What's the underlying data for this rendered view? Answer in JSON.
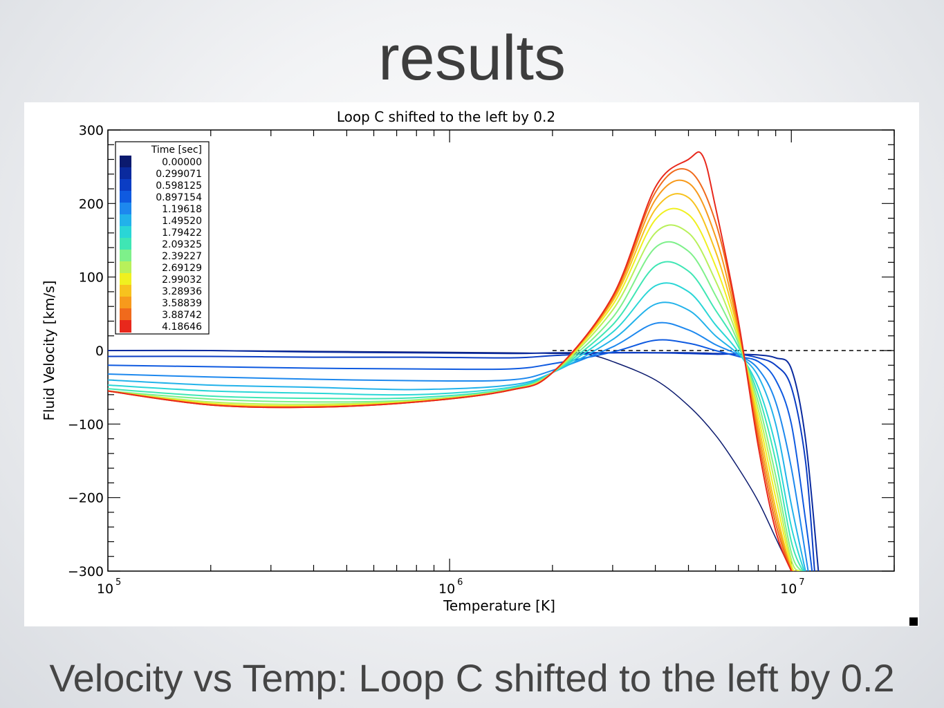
{
  "slide": {
    "title": "results",
    "caption": "Velocity vs Temp: Loop C shifted to the left by 0.2"
  },
  "chart_data": {
    "type": "line",
    "title": "Loop C shifted to the left by 0.2",
    "xlabel": "Temperature [K]",
    "ylabel": "Fluid Velocity [km/s]",
    "x_scale": "log",
    "xlim": [
      100000,
      20000000
    ],
    "ylim": [
      -300,
      300
    ],
    "x_ticks": [
      {
        "value": 100000,
        "base": "10",
        "exp": "5"
      },
      {
        "value": 1000000,
        "base": "10",
        "exp": "6"
      },
      {
        "value": 10000000,
        "base": "10",
        "exp": "7"
      }
    ],
    "y_ticks": [
      {
        "value": 300,
        "label": "300"
      },
      {
        "value": 200,
        "label": "200"
      },
      {
        "value": 100,
        "label": "100"
      },
      {
        "value": 0,
        "label": "0"
      },
      {
        "value": -100,
        "label": "−100"
      },
      {
        "value": -200,
        "label": "−200"
      },
      {
        "value": -300,
        "label": "−300"
      }
    ],
    "legend": {
      "title": "Time [sec]",
      "position": "top-left",
      "entries": [
        "0.00000",
        "0.299071",
        "0.598125",
        "0.897154",
        "1.19618",
        "1.49520",
        "1.79422",
        "2.09325",
        "2.39227",
        "2.69129",
        "2.99032",
        "3.28936",
        "3.58839",
        "3.88742",
        "4.18646"
      ]
    },
    "colors": [
      "#0b1a6e",
      "#0a2a9e",
      "#0b3dc4",
      "#0f5ae0",
      "#1d88ee",
      "#22b2ea",
      "#2ad6d6",
      "#3fe6b4",
      "#7ef08a",
      "#b8f05a",
      "#f0f020",
      "#f7c21e",
      "#f79a1c",
      "#f06a1c",
      "#e8281c"
    ],
    "reference_line": {
      "y": 0,
      "style": "dashed"
    },
    "series": [
      {
        "x": [
          100000,
          200000,
          400000,
          800000,
          1500000,
          2000000,
          2500000,
          3000000,
          4000000,
          5000000,
          6000000,
          7000000,
          8000000,
          9000000,
          10000000
        ],
        "y": [
          0,
          0,
          -1,
          -2,
          -3,
          -4,
          -5,
          -15,
          -40,
          -75,
          -115,
          -160,
          -205,
          -255,
          -300
        ]
      },
      {
        "x": [
          100000,
          200000,
          400000,
          800000,
          1500000,
          2100000,
          3000000,
          4000000,
          5000000,
          6000000,
          7000000,
          8000000,
          9000000,
          10000000,
          11000000,
          12000000
        ],
        "y": [
          0,
          0,
          -2,
          -3,
          -4,
          -3,
          -3,
          -3,
          -3,
          -4,
          -5,
          -6,
          -10,
          -25,
          -120,
          -300
        ]
      },
      {
        "x": [
          100000,
          200000,
          400000,
          800000,
          1500000,
          2000000,
          3000000,
          4000000,
          5000000,
          6000000,
          7000000,
          8000000,
          9000000,
          10000000,
          11000000,
          11700000
        ],
        "y": [
          -8,
          -8,
          -9,
          -9,
          -10,
          -7,
          -3,
          -3,
          -4,
          -5,
          -5,
          -10,
          -20,
          -50,
          -150,
          -300
        ]
      },
      {
        "x": [
          100000,
          200000,
          400000,
          800000,
          1500000,
          2000000,
          3000000,
          4000000,
          5000000,
          6000000,
          7000000,
          8000000,
          9000000,
          10000000,
          11000000,
          11500000
        ],
        "y": [
          -20,
          -22,
          -24,
          -25,
          -25,
          -18,
          -2,
          14,
          10,
          0,
          -8,
          -15,
          -40,
          -100,
          -230,
          -300
        ]
      },
      {
        "x": [
          100000,
          200000,
          400000,
          800000,
          1500000,
          2000000,
          3000000,
          4000000,
          5000000,
          6000000,
          7000000,
          8000000,
          9000000,
          10000000,
          11200000
        ],
        "y": [
          -32,
          -36,
          -39,
          -41,
          -40,
          -27,
          5,
          37,
          28,
          8,
          -6,
          -25,
          -70,
          -160,
          -300
        ]
      },
      {
        "x": [
          100000,
          200000,
          400000,
          800000,
          1500000,
          2000000,
          3000000,
          4000000,
          5000000,
          6000000,
          7000000,
          8000000,
          9000000,
          10000000,
          11000000
        ],
        "y": [
          -40,
          -47,
          -50,
          -53,
          -47,
          -30,
          15,
          63,
          55,
          20,
          -5,
          -35,
          -100,
          -210,
          -300
        ]
      },
      {
        "x": [
          100000,
          200000,
          400000,
          800000,
          1500000,
          2000000,
          3000000,
          4000000,
          5000000,
          6000000,
          7000000,
          8000000,
          9000000,
          10000000,
          10900000
        ],
        "y": [
          -47,
          -55,
          -58,
          -60,
          -50,
          -30,
          25,
          88,
          80,
          35,
          -2,
          -50,
          -130,
          -240,
          -300
        ]
      },
      {
        "x": [
          100000,
          200000,
          400000,
          800000,
          1500000,
          2000000,
          3000000,
          4000000,
          5000000,
          6000000,
          7000000,
          8000000,
          9000000,
          10000000,
          10800000
        ],
        "y": [
          -52,
          -62,
          -65,
          -64,
          -52,
          -30,
          35,
          115,
          108,
          55,
          5,
          -60,
          -150,
          -260,
          -300
        ]
      },
      {
        "x": [
          100000,
          200000,
          400000,
          800000,
          1500000,
          2000000,
          3000000,
          4000000,
          5000000,
          6000000,
          7000000,
          8000000,
          9000000,
          10000000,
          10700000
        ],
        "y": [
          -55,
          -66,
          -70,
          -67,
          -53,
          -30,
          45,
          140,
          135,
          75,
          10,
          -70,
          -170,
          -275,
          -300
        ]
      },
      {
        "x": [
          100000,
          200000,
          400000,
          800000,
          1500000,
          2000000,
          3000000,
          4000000,
          5000000,
          6000000,
          7000000,
          8000000,
          9000000,
          10000000,
          10600000
        ],
        "y": [
          -55,
          -70,
          -73,
          -68,
          -53,
          -30,
          55,
          160,
          160,
          95,
          15,
          -80,
          -185,
          -285,
          -300
        ]
      },
      {
        "x": [
          100000,
          200000,
          400000,
          800000,
          1500000,
          2000000,
          3000000,
          4000000,
          5000000,
          6000000,
          7000000,
          8000000,
          9000000,
          10000000,
          10500000
        ],
        "y": [
          -55,
          -72,
          -75,
          -69,
          -54,
          -30,
          62,
          178,
          185,
          115,
          20,
          -90,
          -200,
          -292,
          -300
        ]
      },
      {
        "x": [
          100000,
          200000,
          400000,
          800000,
          1500000,
          2000000,
          3000000,
          4000000,
          5000000,
          6000000,
          7000000,
          8000000,
          9000000,
          10000000,
          10400000
        ],
        "y": [
          -55,
          -73,
          -76,
          -70,
          -54,
          -30,
          67,
          192,
          208,
          135,
          25,
          -100,
          -215,
          -297,
          -300
        ]
      },
      {
        "x": [
          100000,
          200000,
          400000,
          800000,
          1500000,
          2000000,
          3000000,
          4000000,
          5000000,
          6000000,
          7000000,
          8000000,
          9000000,
          10000000,
          10300000
        ],
        "y": [
          -55,
          -74,
          -77,
          -70,
          -54,
          -30,
          70,
          205,
          228,
          155,
          30,
          -110,
          -225,
          -299,
          -300
        ]
      },
      {
        "x": [
          100000,
          200000,
          400000,
          800000,
          1500000,
          2000000,
          3000000,
          4000000,
          5000000,
          6000000,
          7000000,
          8000000,
          9000000,
          10000000,
          10200000
        ],
        "y": [
          -55,
          -74,
          -77,
          -70,
          -54,
          -30,
          72,
          215,
          245,
          175,
          35,
          -120,
          -235,
          -300,
          -300
        ]
      },
      {
        "x": [
          100000,
          200000,
          400000,
          800000,
          1500000,
          2000000,
          3000000,
          4000000,
          5000000,
          5500000,
          6000000,
          7000000,
          8000000,
          9000000,
          10000000,
          10100000
        ],
        "y": [
          -55,
          -74,
          -77,
          -70,
          -54,
          -30,
          74,
          222,
          260,
          265,
          195,
          40,
          -130,
          -245,
          -300,
          -300
        ]
      }
    ]
  }
}
